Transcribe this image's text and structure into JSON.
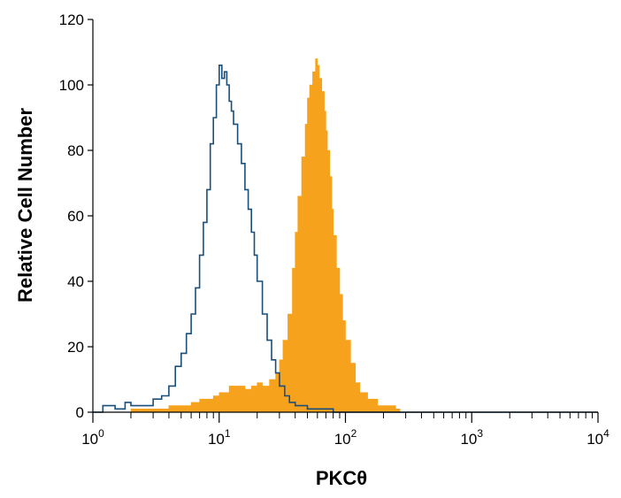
{
  "chart_data": {
    "type": "area",
    "xlabel": "PKCθ",
    "ylabel": "Relative Cell Number",
    "xscale": "log",
    "xlim": [
      1,
      10000
    ],
    "ylim": [
      0,
      120
    ],
    "x_ticks": [
      {
        "base": "10",
        "exp": "0"
      },
      {
        "base": "10",
        "exp": "1"
      },
      {
        "base": "10",
        "exp": "2"
      },
      {
        "base": "10",
        "exp": "3"
      },
      {
        "base": "10",
        "exp": "4"
      }
    ],
    "y_ticks": [
      "0",
      "20",
      "40",
      "60",
      "80",
      "100",
      "120"
    ],
    "series": [
      {
        "style": "outline",
        "color": "#1a4f7a",
        "x": [
          1,
          1.2,
          1.5,
          1.8,
          2,
          2.5,
          3,
          3.5,
          4,
          4.5,
          5,
          5.5,
          6,
          6.5,
          7,
          7.5,
          8,
          8.5,
          9,
          9.5,
          10,
          10.5,
          11,
          11.5,
          12,
          12.5,
          13,
          14,
          15,
          16,
          17,
          18,
          19,
          20,
          22,
          24,
          26,
          28,
          30,
          33,
          36,
          40,
          45,
          50,
          60,
          70,
          80,
          100,
          200,
          500,
          1000,
          5000,
          10000
        ],
        "values": [
          0,
          2,
          1,
          3,
          2,
          2,
          4,
          5,
          8,
          14,
          18,
          24,
          30,
          38,
          48,
          58,
          68,
          82,
          90,
          100,
          106,
          102,
          104,
          100,
          95,
          92,
          88,
          82,
          76,
          68,
          62,
          55,
          48,
          40,
          30,
          22,
          16,
          12,
          8,
          5,
          3,
          2,
          2,
          1,
          1,
          1,
          0,
          0,
          0,
          0,
          0,
          0,
          0
        ]
      },
      {
        "style": "filled",
        "color": "#f7a21c",
        "x": [
          1,
          2,
          3,
          4,
          5,
          6,
          7,
          8,
          9,
          10,
          12,
          14,
          16,
          18,
          20,
          22,
          25,
          28,
          30,
          32,
          35,
          38,
          40,
          42,
          45,
          48,
          50,
          52,
          55,
          58,
          60,
          62,
          65,
          68,
          70,
          72,
          75,
          78,
          80,
          85,
          90,
          95,
          100,
          110,
          120,
          130,
          150,
          180,
          200,
          250,
          270,
          500,
          10000
        ],
        "values": [
          0,
          1,
          1,
          2,
          2,
          3,
          4,
          4,
          5,
          6,
          8,
          8,
          7,
          8,
          9,
          8,
          10,
          12,
          16,
          22,
          30,
          44,
          55,
          66,
          78,
          88,
          96,
          100,
          104,
          108,
          106,
          102,
          98,
          92,
          86,
          80,
          72,
          62,
          54,
          44,
          36,
          28,
          22,
          15,
          9,
          6,
          4,
          2,
          2,
          1,
          0,
          0,
          0
        ]
      }
    ]
  }
}
